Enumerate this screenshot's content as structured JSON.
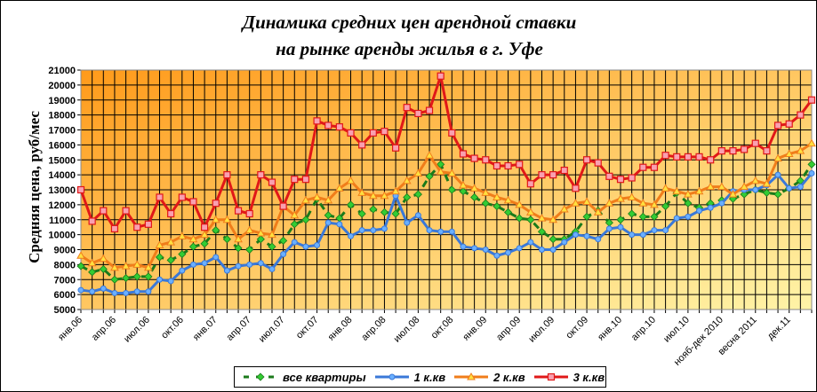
{
  "chart_data": {
    "type": "line",
    "title": "Динамика средних цен арендной ставки на рынке аренды жилья в г. Уфе",
    "title_lines": [
      "Динамика средних цен арендной ставки",
      "на рынке аренды жилья в г. Уфе"
    ],
    "xlabel": "",
    "ylabel": "Средняя цена, руб/мес",
    "ylim": [
      5000,
      21000
    ],
    "y_ticks": [
      5000,
      6000,
      7000,
      8000,
      9000,
      10000,
      11000,
      12000,
      13000,
      14000,
      15000,
      16000,
      17000,
      18000,
      19000,
      20000,
      21000
    ],
    "x_tick_labels": [
      "янв.06",
      "апр.06",
      "июл.06",
      "окт.06",
      "янв.07",
      "апр.07",
      "июл.07",
      "окт.07",
      "янв.08",
      "апр.08",
      "июл.08",
      "окт.08",
      "янв.09",
      "апр.09",
      "июл.09",
      "окт.09",
      "янв.10",
      "апр.10",
      "июл.10",
      "нояб-дек 2010",
      "весна 2011",
      "дек.11"
    ],
    "x_tick_every": 3,
    "n_points": 66,
    "grid": true,
    "legend_position": "bottom",
    "series": [
      {
        "name": "все квартиры",
        "color": "#1a7a1a",
        "marker": "diamond",
        "style": "dashed",
        "values": [
          7900,
          7500,
          7700,
          7000,
          7100,
          7200,
          7200,
          8500,
          8300,
          8700,
          9200,
          9400,
          10300,
          9700,
          9100,
          9000,
          9700,
          9200,
          9600,
          10700,
          11000,
          12400,
          11300,
          11100,
          12000,
          11400,
          11700,
          11500,
          11400,
          12500,
          12700,
          13900,
          14700,
          13000,
          12900,
          12500,
          12100,
          11900,
          11500,
          11100,
          11000,
          10200,
          9700,
          9700,
          10200,
          11200,
          11600,
          10800,
          11000,
          11400,
          11200,
          11200,
          11900,
          12800,
          12100,
          11800,
          12100,
          12300,
          12400,
          12700,
          13000,
          12800,
          12700,
          13100,
          13600,
          14700
        ]
      },
      {
        "name": "1 к.кв",
        "color": "#3a78d8",
        "marker": "diamond",
        "style": "solid",
        "values": [
          6300,
          6200,
          6400,
          6100,
          6100,
          6200,
          6200,
          7000,
          6900,
          7600,
          8000,
          8100,
          8500,
          7600,
          7900,
          8000,
          8100,
          7700,
          8700,
          9500,
          9200,
          9300,
          10800,
          10700,
          9900,
          10300,
          10300,
          10400,
          12600,
          10800,
          11300,
          10300,
          10200,
          10200,
          9200,
          9100,
          9000,
          8600,
          8800,
          9100,
          9500,
          9000,
          9000,
          9500,
          10000,
          9900,
          9700,
          10400,
          10500,
          10000,
          10000,
          10300,
          10300,
          11100,
          11200,
          11600,
          11800,
          12100,
          12900,
          13000,
          13000,
          13300,
          14000,
          13100,
          13200,
          14100
        ]
      },
      {
        "name": "2 к.кв",
        "color": "#f07d1a",
        "marker": "triangle",
        "style": "solid",
        "values": [
          8600,
          8100,
          8400,
          7800,
          7900,
          8000,
          7800,
          9300,
          9500,
          9900,
          9700,
          10000,
          11000,
          11000,
          9700,
          10300,
          10100,
          10000,
          11900,
          11300,
          12300,
          12500,
          12300,
          13100,
          13600,
          12800,
          12600,
          12600,
          12900,
          13600,
          14100,
          15300,
          14200,
          14100,
          13300,
          13100,
          12800,
          12500,
          12300,
          12000,
          11500,
          11100,
          11000,
          11700,
          12100,
          12200,
          11500,
          12100,
          12400,
          12500,
          12100,
          12000,
          13100,
          12900,
          12700,
          12900,
          13200,
          13200,
          12700,
          13200,
          13600,
          13400,
          15100,
          15400,
          15600,
          16100
        ]
      },
      {
        "name": "3 к.кв",
        "color": "#e01818",
        "marker": "square",
        "style": "solid",
        "values": [
          13000,
          10900,
          11600,
          10400,
          11600,
          10500,
          10700,
          12500,
          11400,
          12500,
          12200,
          10500,
          12100,
          14000,
          11600,
          11400,
          14000,
          13500,
          11900,
          13700,
          13700,
          17600,
          17300,
          17200,
          16800,
          16000,
          16800,
          16900,
          15800,
          18500,
          18100,
          18300,
          20600,
          16800,
          15400,
          15100,
          15000,
          14600,
          14600,
          14700,
          13400,
          14000,
          14000,
          14300,
          13100,
          15000,
          14800,
          13900,
          13700,
          13800,
          14500,
          14500,
          15300,
          15200,
          15200,
          15200,
          15000,
          15600,
          15600,
          15700,
          16100,
          15600,
          17300,
          17400,
          18000,
          19000
        ]
      }
    ]
  }
}
